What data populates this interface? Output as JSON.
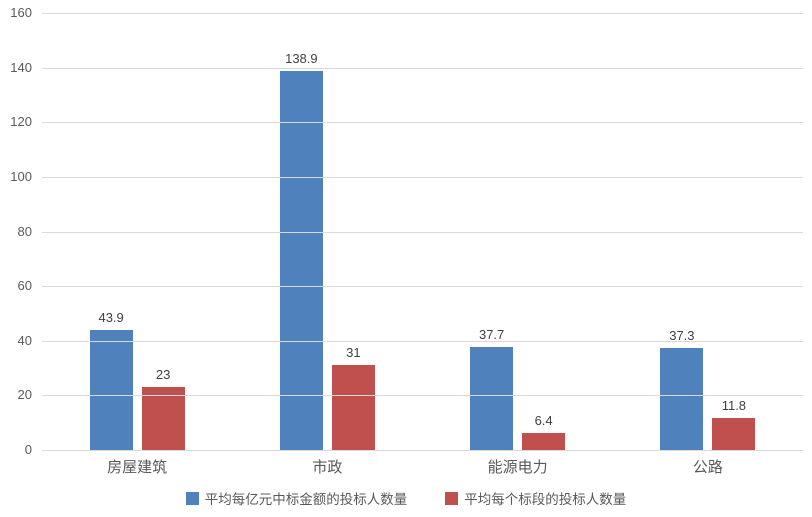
{
  "chart_data": {
    "type": "bar",
    "title": "",
    "xlabel": "",
    "ylabel": "",
    "categories": [
      "房屋建筑",
      "市政",
      "能源电力",
      "公路"
    ],
    "series": [
      {
        "name": "平均每亿元中标金额的投标人数量",
        "color": "#4F81BD",
        "values": [
          43.9,
          138.9,
          37.7,
          37.3
        ],
        "labels": [
          "43.9",
          "138.9",
          "37.7",
          "37.3"
        ]
      },
      {
        "name": "平均每个标段的投标人数量",
        "color": "#C0504D",
        "values": [
          23,
          31,
          6.4,
          11.8
        ],
        "labels": [
          "23",
          "31",
          "6.4",
          "11.8"
        ]
      }
    ],
    "ylim": [
      0,
      160
    ],
    "yticks": [
      0,
      20,
      40,
      60,
      80,
      100,
      120,
      140,
      160
    ],
    "grid": true,
    "legend_position": "bottom",
    "data_labels": true
  },
  "colors": {
    "background": "#FFFFFF",
    "gridline": "#D9D9D9",
    "axis_text": "#595959",
    "value_label_text": "#404040"
  }
}
